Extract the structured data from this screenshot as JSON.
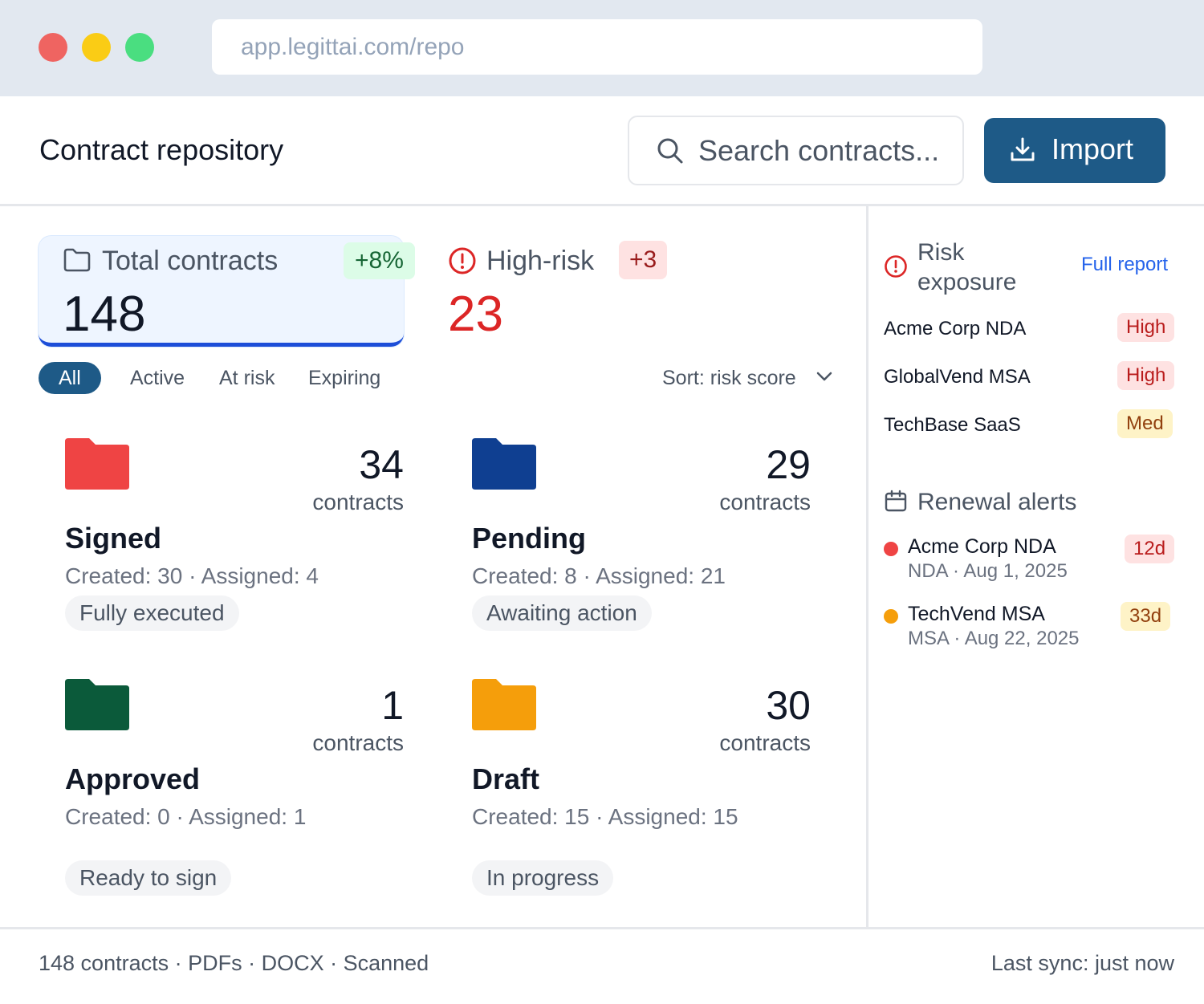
{
  "browser": {
    "url": "app.legittai.com/repo"
  },
  "header": {
    "title": "Contract repository",
    "search_placeholder": "Search contracts...",
    "import_label": "Import"
  },
  "kpis": {
    "total": {
      "label": "Total contracts",
      "value": "148",
      "delta": "+8%"
    },
    "high_risk": {
      "label": "High-risk",
      "value": "23",
      "delta": "+3"
    }
  },
  "filters": [
    "All",
    "Active",
    "At risk",
    "Expiring"
  ],
  "sort_label": "Sort: risk score",
  "folders": [
    {
      "name": "Signed",
      "count": "34",
      "unit": "contracts",
      "meta": "Created: 30 · Assigned: 4",
      "status": "Fully executed",
      "color": "#ef4444"
    },
    {
      "name": "Pending",
      "count": "29",
      "unit": "contracts",
      "meta": "Created: 8 · Assigned: 21",
      "status": "Awaiting action",
      "color": "#0f3f91"
    },
    {
      "name": "Approved",
      "count": "1",
      "unit": "contracts",
      "meta": "Created: 0 · Assigned: 1",
      "status": "Ready to sign",
      "color": "#0b5a3a"
    },
    {
      "name": "Draft",
      "count": "30",
      "unit": "contracts",
      "meta": "Created: 15 · Assigned: 15",
      "status": "In progress",
      "color": "#f59e0b"
    }
  ],
  "risk_panel": {
    "title_line1": "Risk",
    "title_line2": "exposure",
    "link": "Full report",
    "rows": [
      {
        "name": "Acme Corp NDA",
        "level": "High"
      },
      {
        "name": "GlobalVend MSA",
        "level": "High"
      },
      {
        "name": "TechBase SaaS",
        "level": "Med"
      }
    ]
  },
  "renewals": {
    "title": "Renewal alerts",
    "items": [
      {
        "name": "Acme Corp NDA",
        "sub": "NDA · Aug 1, 2025",
        "due": "12d",
        "color": "#ef4444"
      },
      {
        "name": "TechVend MSA",
        "sub": "MSA · Aug 22, 2025",
        "due": "33d",
        "color": "#f59e0b"
      }
    ]
  },
  "footer": {
    "left": "148 contracts · PDFs · DOCX · Scanned",
    "right": "Last sync: just now"
  },
  "colors": {
    "primary": "#1e5a87",
    "danger": "#dc2626",
    "kpi_accent": "#1d4ed8",
    "link": "#2563eb"
  }
}
